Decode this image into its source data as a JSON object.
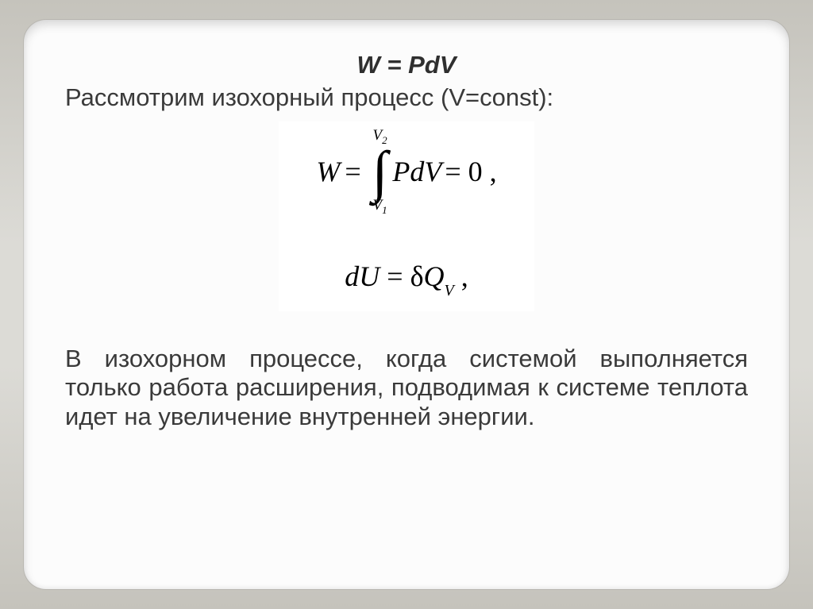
{
  "colors": {
    "stage_bg_top": "#c5c3bc",
    "stage_bg_mid": "#dcdbd6",
    "slide_bg": "#fcfcfc",
    "text": "#3a3a3a",
    "formula_text": "#000000",
    "formula_bg": "#ffffff"
  },
  "typography": {
    "body_family": "Verdana",
    "body_size_pt": 23,
    "formula_family": "Times New Roman",
    "formula_size_pt": 27,
    "title_italic": true,
    "title_bold": true
  },
  "title": "W = PdV",
  "subtitle": "Рассмотрим изохорный процесс (V=const):",
  "formula1": {
    "lhs": "W",
    "upper_limit": "V",
    "upper_limit_sub": "2",
    "lower_limit": "V",
    "lower_limit_sub": "1",
    "integrand": "PdV",
    "result": "= 0 ,"
  },
  "formula2": {
    "lhs_d": "d",
    "lhs_U": "U",
    "eq": " = ",
    "delta": "δ",
    "Q": "Q",
    "sub": "V",
    "tail": " ,"
  },
  "body": "В изохорном процессе, когда системой выполняется только работа расширения, подводимая к системе теплота идет на увеличение внутренней энергии."
}
